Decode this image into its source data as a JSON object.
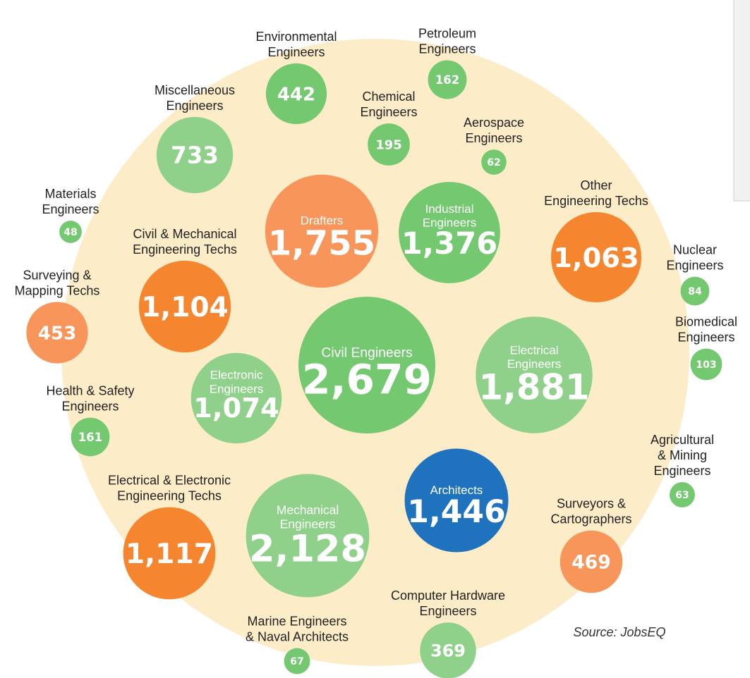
{
  "chart_data": {
    "type": "packed-bubble",
    "categories": [
      "Civil Engineers",
      "Mechanical\nEngineers",
      "Electrical\nEngineers",
      "Drafters",
      "Architects",
      "Industrial\nEngineers",
      "Electrical & Electronic\nEngineering Techs",
      "Civil & Mechanical\nEngineering Techs",
      "Electronic\nEngineers",
      "Other\nEngineering Techs",
      "Miscellaneous\nEngineers",
      "Surveyors &\nCartographers",
      "Surveying &\nMapping Techs",
      "Environmental\nEngineers",
      "Computer Hardware\nEngineers",
      "Chemical\nEngineers",
      "Petroleum\nEngineers",
      "Health & Safety\nEngineers",
      "Biomedical\nEngineers",
      "Nuclear\nEngineers",
      "Marine Engineers\n& Naval Architects",
      "Agricultural\n& Mining\nEngineers",
      "Aerospace\nEngineers",
      "Materials\nEngineers"
    ],
    "values": [
      2679,
      2128,
      1881,
      1755,
      1446,
      1376,
      1117,
      1104,
      1074,
      1063,
      733,
      469,
      453,
      442,
      369,
      195,
      162,
      161,
      103,
      84,
      67,
      63,
      62,
      48
    ],
    "value_labels": [
      "2,679",
      "2,128",
      "1,881",
      "1,755",
      "1,446",
      "1,376",
      "1,117",
      "1,104",
      "1,074",
      "1,063",
      "733",
      "469",
      "453",
      "442",
      "369",
      "195",
      "162",
      "161",
      "103",
      "84",
      "67",
      "63",
      "62",
      "48"
    ],
    "colors": [
      "#74c870",
      "#8fd18a",
      "#8fd18a",
      "#f7955a",
      "#1f72bd",
      "#74c870",
      "#f5862f",
      "#f5862f",
      "#8fd18a",
      "#f5862f",
      "#8fd18a",
      "#f7955a",
      "#f7955a",
      "#74c870",
      "#8fd18a",
      "#74c870",
      "#74c870",
      "#74c870",
      "#74c870",
      "#74c870",
      "#74c870",
      "#74c870",
      "#74c870",
      "#74c870"
    ],
    "source": "Source: JobsEQ"
  }
}
